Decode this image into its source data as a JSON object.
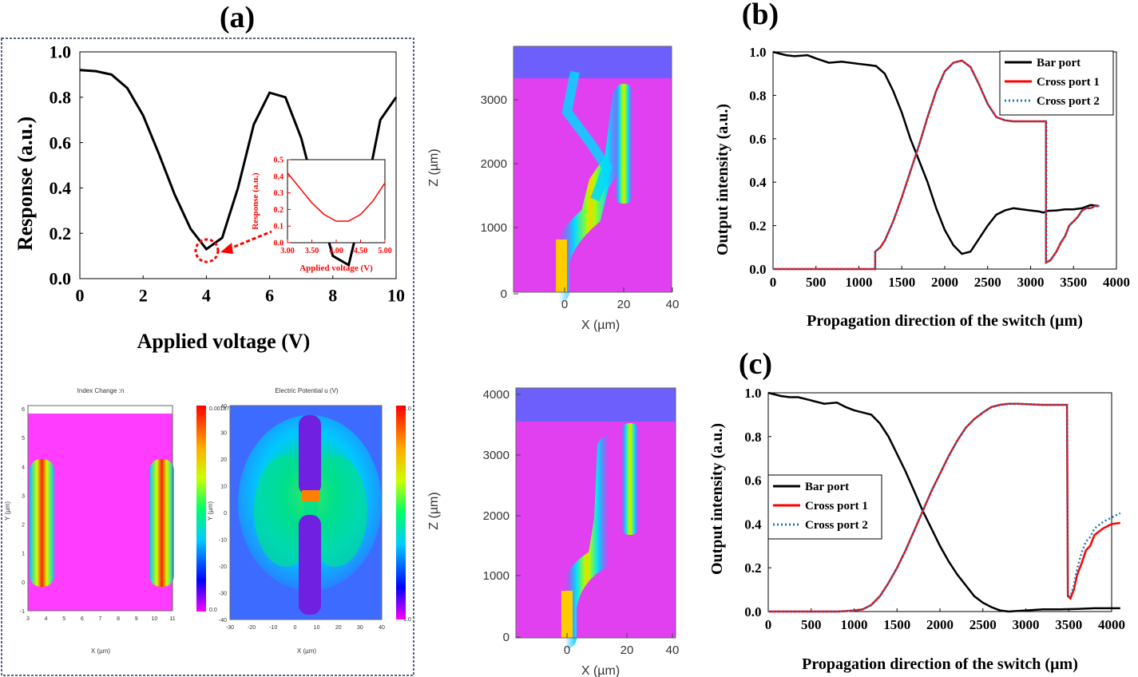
{
  "panel_labels": {
    "a": "(a)",
    "b": "(b)",
    "c": "(c)"
  },
  "colors": {
    "black": "#000000",
    "red": "#ff0000",
    "blue": "#1f77b4",
    "magenta": "#ff3cff",
    "frame": "#1f2d5a"
  },
  "sim": {
    "top": {
      "ylabel": "Z (µm)",
      "xlabel": "X (µm)",
      "yticks": [
        "3000",
        "2000",
        "1000",
        "0"
      ],
      "xticks": [
        "0",
        "20",
        "40"
      ]
    },
    "bottom": {
      "ylabel": "Z (µm)",
      "xlabel": "X (µm)",
      "yticks": [
        "4000",
        "3000",
        "2000",
        "1000",
        "0"
      ],
      "xticks": [
        "0",
        "20",
        "40"
      ]
    },
    "index": {
      "title": "Index Change :n",
      "ylabel": "Y (µm)",
      "xlabel": "X (µm)",
      "cbar_max": "0.00187",
      "cbar_min": "0.0",
      "xticks": [
        "3",
        "4",
        "5",
        "6",
        "7",
        "8",
        "9",
        "10",
        "11"
      ],
      "yticks": [
        "6",
        "5",
        "4",
        "3",
        "2",
        "1",
        "0",
        "-1"
      ]
    },
    "potential": {
      "title": "Electric Potential u (V)",
      "ylabel": "Y (µm)",
      "xlabel": "X (µm)",
      "cbar_max": "1.0",
      "cbar_min": "1.0",
      "xticks": [
        "-30",
        "-20",
        "-10",
        "0",
        "10",
        "20",
        "30",
        "40"
      ],
      "yticks": [
        "40",
        "30",
        "20",
        "10",
        "0",
        "-10",
        "-20",
        "-30",
        "-40"
      ]
    }
  },
  "chart_data": [
    {
      "id": "a",
      "type": "line",
      "xlabel": "Applied voltage (V)",
      "ylabel": "Response (a.u.)",
      "xlim": [
        0,
        10
      ],
      "ylim": [
        0,
        1.0
      ],
      "xticks": [
        "0",
        "2",
        "4",
        "6",
        "8",
        "10"
      ],
      "yticks": [
        "0.0",
        "0.2",
        "0.4",
        "0.6",
        "0.8",
        "1.0"
      ],
      "series": [
        {
          "name": "Response",
          "x": [
            0,
            0.5,
            1,
            1.5,
            2,
            2.5,
            3,
            3.5,
            4,
            4.5,
            5,
            5.5,
            6,
            6.5,
            7,
            7.5,
            8,
            8.5,
            9,
            9.5,
            10
          ],
          "y": [
            0.92,
            0.915,
            0.9,
            0.84,
            0.72,
            0.55,
            0.37,
            0.22,
            0.13,
            0.18,
            0.4,
            0.68,
            0.82,
            0.8,
            0.62,
            0.35,
            0.1,
            0.06,
            0.35,
            0.7,
            0.8
          ]
        }
      ],
      "inset": {
        "xlabel": "Applied voltage (V)",
        "ylabel": "Response (a.u.)",
        "xlim": [
          3.0,
          5.0
        ],
        "ylim": [
          0,
          0.5
        ],
        "xticks": [
          "3.00",
          "3.50",
          "4.00",
          "4.50",
          "5.00"
        ],
        "yticks": [
          "0.0",
          "0.1",
          "0.2",
          "0.3",
          "0.4",
          "0.5"
        ],
        "x": [
          3.0,
          3.25,
          3.5,
          3.75,
          4.0,
          4.25,
          4.5,
          4.75,
          5.0
        ],
        "y": [
          0.42,
          0.33,
          0.24,
          0.17,
          0.13,
          0.13,
          0.17,
          0.25,
          0.36
        ]
      }
    },
    {
      "id": "b",
      "type": "line",
      "xlabel": "Propagation direction of the switch (µm)",
      "ylabel": "Output intensity (a.u.)",
      "xlim": [
        0,
        4000
      ],
      "ylim": [
        0,
        1.0
      ],
      "xticks": [
        "0",
        "500",
        "1000",
        "1500",
        "2000",
        "2500",
        "3000",
        "3500",
        "4000"
      ],
      "yticks": [
        "0.0",
        "0.2",
        "0.4",
        "0.6",
        "0.8",
        "1.0"
      ],
      "legend": "top-right",
      "series": [
        {
          "name": "Bar port",
          "style": "solid-black",
          "x": [
            0,
            150,
            250,
            400,
            500,
            650,
            800,
            900,
            1000,
            1100,
            1200,
            1300,
            1400,
            1500,
            1600,
            1700,
            1800,
            1900,
            2000,
            2100,
            2200,
            2300,
            2400,
            2500,
            2600,
            2700,
            2800,
            2900,
            3000,
            3100,
            3150,
            3200,
            3300,
            3400,
            3500,
            3600,
            3700,
            3800
          ],
          "y": [
            1.0,
            0.985,
            0.98,
            0.985,
            0.97,
            0.95,
            0.955,
            0.95,
            0.945,
            0.94,
            0.935,
            0.9,
            0.82,
            0.72,
            0.6,
            0.5,
            0.4,
            0.28,
            0.18,
            0.11,
            0.07,
            0.08,
            0.14,
            0.2,
            0.25,
            0.27,
            0.28,
            0.275,
            0.27,
            0.265,
            0.26,
            0.268,
            0.27,
            0.275,
            0.275,
            0.28,
            0.295,
            0.29
          ]
        },
        {
          "name": "Cross port 1",
          "style": "solid-red",
          "x": [
            0,
            1190,
            1190,
            1250,
            1300,
            1400,
            1500,
            1600,
            1700,
            1800,
            1900,
            2000,
            2100,
            2200,
            2300,
            2400,
            2500,
            2600,
            2700,
            2800,
            3000,
            3180,
            3180,
            3230,
            3300,
            3350,
            3400,
            3450,
            3500,
            3550,
            3600,
            3650,
            3700,
            3750,
            3800
          ],
          "y": [
            0,
            0,
            0.08,
            0.1,
            0.13,
            0.22,
            0.33,
            0.45,
            0.57,
            0.7,
            0.82,
            0.91,
            0.95,
            0.96,
            0.93,
            0.85,
            0.76,
            0.7,
            0.685,
            0.68,
            0.68,
            0.68,
            0.03,
            0.04,
            0.08,
            0.12,
            0.15,
            0.2,
            0.22,
            0.24,
            0.27,
            0.28,
            0.28,
            0.29,
            0.29
          ]
        },
        {
          "name": "Cross port 2",
          "style": "dotted-blue",
          "x": [
            0,
            1190,
            1190,
            1250,
            1300,
            1400,
            1500,
            1600,
            1700,
            1800,
            1900,
            2000,
            2100,
            2200,
            2300,
            2400,
            2500,
            2600,
            2700,
            2800,
            3000,
            3180,
            3180,
            3230,
            3300,
            3350,
            3400,
            3450,
            3500,
            3550,
            3600,
            3650,
            3700,
            3750,
            3800
          ],
          "y": [
            0,
            0,
            0.08,
            0.1,
            0.13,
            0.22,
            0.33,
            0.45,
            0.57,
            0.7,
            0.82,
            0.91,
            0.95,
            0.96,
            0.93,
            0.85,
            0.76,
            0.7,
            0.685,
            0.68,
            0.68,
            0.68,
            0.03,
            0.04,
            0.08,
            0.12,
            0.15,
            0.2,
            0.22,
            0.24,
            0.27,
            0.28,
            0.28,
            0.29,
            0.29
          ]
        }
      ]
    },
    {
      "id": "c",
      "type": "line",
      "xlabel": "Propagation direction of the switch (µm)",
      "ylabel": "Output intensity (a.u.)",
      "xlim": [
        0,
        4000
      ],
      "ylim": [
        0,
        1.0
      ],
      "xticks": [
        "0",
        "500",
        "1000",
        "1500",
        "2000",
        "2500",
        "3000",
        "3500",
        "4000"
      ],
      "yticks": [
        "0.0",
        "0.2",
        "0.4",
        "0.6",
        "0.8",
        "1.0"
      ],
      "legend": "middle-left",
      "series": [
        {
          "name": "Bar port",
          "style": "solid-black",
          "x": [
            0,
            150,
            250,
            350,
            500,
            650,
            800,
            900,
            1000,
            1100,
            1200,
            1300,
            1400,
            1500,
            1600,
            1700,
            1800,
            1900,
            2000,
            2100,
            2200,
            2300,
            2400,
            2500,
            2600,
            2700,
            2800,
            3000,
            3200,
            3400,
            3600,
            3800,
            4100
          ],
          "y": [
            1.0,
            0.985,
            0.98,
            0.98,
            0.965,
            0.95,
            0.955,
            0.935,
            0.92,
            0.91,
            0.9,
            0.86,
            0.8,
            0.72,
            0.64,
            0.55,
            0.46,
            0.38,
            0.3,
            0.23,
            0.17,
            0.12,
            0.07,
            0.04,
            0.02,
            0.005,
            0.0,
            0.005,
            0.01,
            0.01,
            0.012,
            0.015,
            0.015
          ]
        },
        {
          "name": "Cross port 1",
          "style": "solid-red",
          "x": [
            0,
            800,
            900,
            1000,
            1100,
            1200,
            1300,
            1400,
            1500,
            1600,
            1700,
            1800,
            1900,
            2000,
            2100,
            2200,
            2300,
            2400,
            2500,
            2600,
            2700,
            2800,
            2900,
            3000,
            3200,
            3480,
            3490,
            3520,
            3560,
            3600,
            3650,
            3700,
            3750,
            3800,
            3900,
            4000,
            4100
          ],
          "y": [
            0,
            0,
            0.002,
            0.005,
            0.01,
            0.03,
            0.07,
            0.13,
            0.2,
            0.28,
            0.37,
            0.46,
            0.55,
            0.63,
            0.71,
            0.78,
            0.84,
            0.88,
            0.91,
            0.935,
            0.945,
            0.95,
            0.95,
            0.948,
            0.945,
            0.945,
            0.07,
            0.06,
            0.1,
            0.17,
            0.22,
            0.28,
            0.3,
            0.35,
            0.38,
            0.4,
            0.405
          ]
        },
        {
          "name": "Cross port 2",
          "style": "dotted-blue",
          "x": [
            0,
            800,
            900,
            1000,
            1100,
            1200,
            1300,
            1400,
            1500,
            1600,
            1700,
            1800,
            1900,
            2000,
            2100,
            2200,
            2300,
            2400,
            2500,
            2600,
            2700,
            2800,
            2900,
            3000,
            3200,
            3480,
            3490,
            3520,
            3560,
            3600,
            3650,
            3700,
            3750,
            3800,
            3900,
            4000,
            4100
          ],
          "y": [
            0,
            0,
            0.002,
            0.005,
            0.01,
            0.03,
            0.07,
            0.13,
            0.2,
            0.28,
            0.37,
            0.46,
            0.55,
            0.63,
            0.71,
            0.78,
            0.84,
            0.88,
            0.91,
            0.935,
            0.945,
            0.95,
            0.95,
            0.948,
            0.945,
            0.945,
            0.07,
            0.07,
            0.12,
            0.2,
            0.27,
            0.32,
            0.34,
            0.38,
            0.41,
            0.43,
            0.45
          ]
        }
      ]
    }
  ]
}
